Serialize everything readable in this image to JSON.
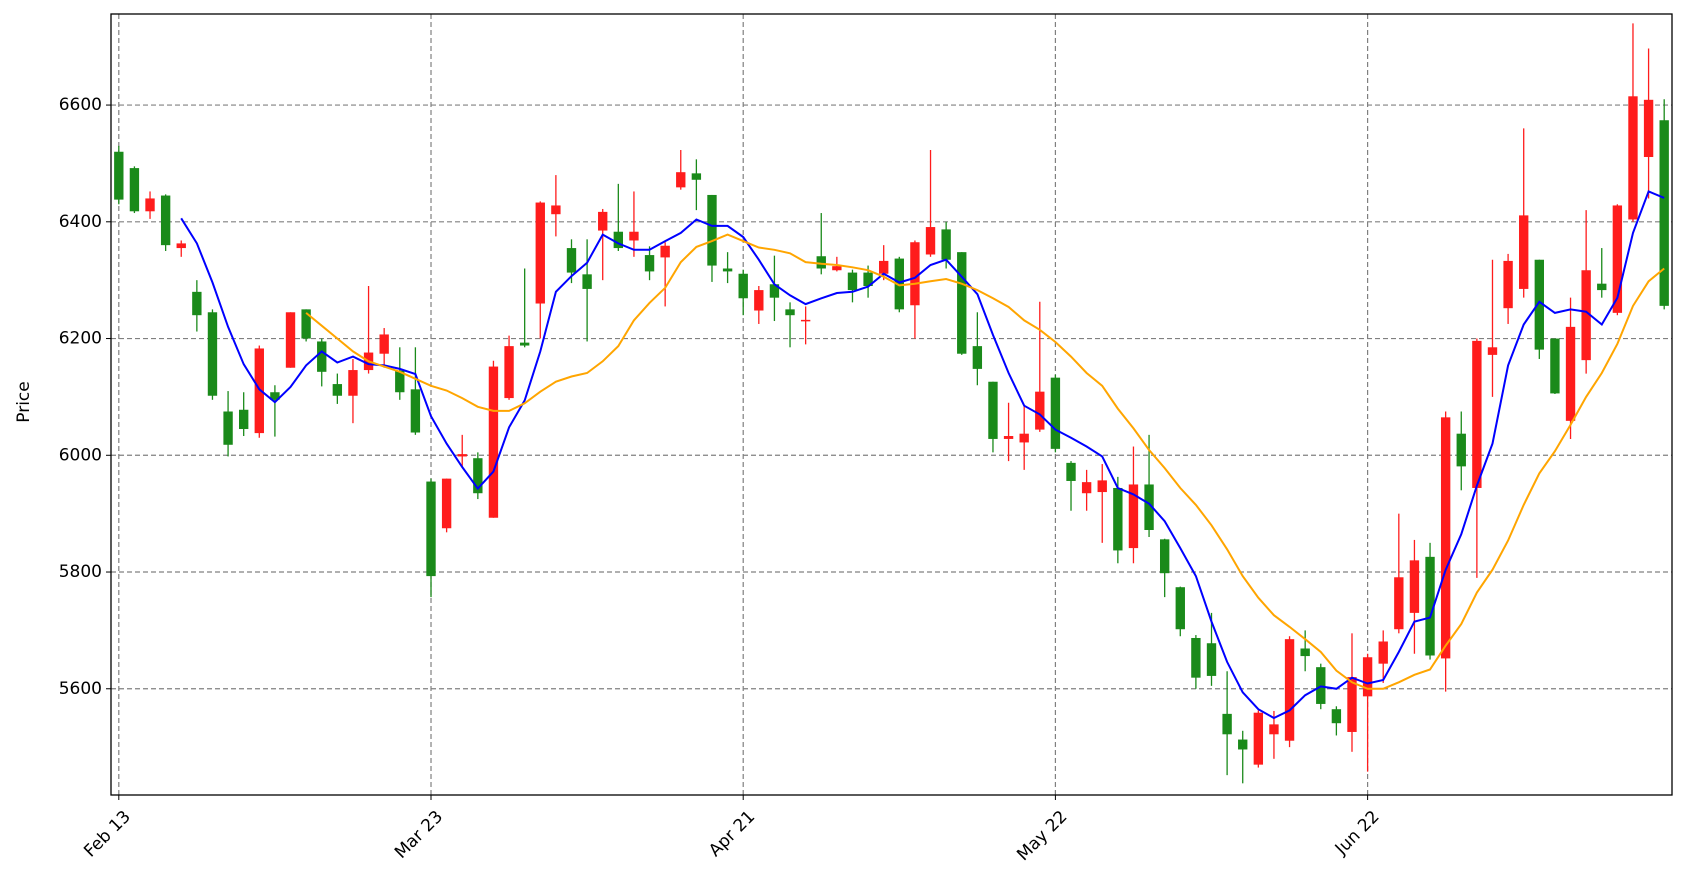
{
  "chart_data": {
    "type": "candlestick",
    "ylabel": "Price",
    "categories": [
      "Feb 13",
      null,
      null,
      null,
      null,
      null,
      null,
      null,
      null,
      null,
      null,
      null,
      null,
      null,
      null,
      null,
      null,
      null,
      null,
      null,
      "Mar 23",
      null,
      null,
      null,
      null,
      null,
      null,
      null,
      null,
      null,
      null,
      null,
      null,
      null,
      null,
      null,
      null,
      null,
      null,
      null,
      "Apr 21",
      null,
      null,
      null,
      null,
      null,
      null,
      null,
      null,
      null,
      null,
      null,
      null,
      null,
      null,
      null,
      null,
      null,
      null,
      null,
      "May 22",
      null,
      null,
      null,
      null,
      null,
      null,
      null,
      null,
      null,
      null,
      null,
      null,
      null,
      null,
      null,
      null,
      null,
      null,
      null,
      "Jun 22",
      null,
      null,
      null,
      null,
      null,
      null,
      null,
      null,
      null,
      null,
      null,
      null,
      null,
      null,
      null,
      null,
      null,
      null,
      null
    ],
    "open": [
      6520,
      6492,
      6418,
      6445,
      6355,
      6280,
      6245,
      6075,
      6078,
      6038,
      6108,
      6150,
      6250,
      6195,
      6122,
      6102,
      6146,
      6174,
      6145,
      6113,
      5955,
      5875,
      5998,
      5995,
      5893,
      6098,
      6193,
      6260,
      6413,
      6355,
      6310,
      6385,
      6383,
      6368,
      6343,
      6339,
      6459,
      6483,
      6446,
      6320,
      6311,
      6248,
      6293,
      6250,
      6230,
      6341,
      6317,
      6313,
      6313,
      6311,
      6337,
      6257,
      6344,
      6387,
      6348,
      6187,
      6126,
      6028,
      6022,
      6044,
      6133,
      5987,
      5935,
      5937,
      5944,
      5841,
      5950,
      5856,
      5774,
      5687,
      5678,
      5557,
      5513,
      5470,
      5522,
      5511,
      5669,
      5637,
      5565,
      5526,
      5587,
      5643,
      5702,
      5730,
      5826,
      5652,
      6037,
      5944,
      6172,
      6252,
      6285,
      6335,
      6200,
      6059,
      6163,
      6294,
      6244,
      6404,
      6511,
      6574
    ],
    "high": [
      6530,
      6495,
      6452,
      6447,
      6368,
      6300,
      6250,
      6110,
      6108,
      6188,
      6120,
      6245,
      6250,
      6200,
      6140,
      6165,
      6290,
      6218,
      6185,
      6185,
      5960,
      5960,
      6035,
      6005,
      6162,
      6205,
      6320,
      6435,
      6480,
      6370,
      6370,
      6422,
      6465,
      6452,
      6358,
      6365,
      6523,
      6507,
      6446,
      6348,
      6318,
      6290,
      6342,
      6262,
      6255,
      6415,
      6340,
      6318,
      6325,
      6360,
      6340,
      6368,
      6523,
      6400,
      6348,
      6245,
      6126,
      6090,
      6085,
      6263,
      6138,
      5990,
      5975,
      5985,
      5963,
      6015,
      6035,
      5857,
      5775,
      5692,
      5730,
      5630,
      5528,
      5563,
      5562,
      5690,
      5700,
      5643,
      5570,
      5695,
      5660,
      5700,
      5900,
      5855,
      5850,
      6075,
      6075,
      6200,
      6335,
      6345,
      6560,
      6335,
      6200,
      6270,
      6420,
      6355,
      6430,
      6740,
      6697,
      6610
    ],
    "low": [
      6430,
      6415,
      6405,
      6350,
      6340,
      6212,
      6095,
      5998,
      6033,
      6030,
      6032,
      6150,
      6195,
      6118,
      6088,
      6055,
      6140,
      6150,
      6095,
      6035,
      5757,
      5868,
      5980,
      5925,
      5893,
      6095,
      6185,
      6200,
      6375,
      6295,
      6195,
      6300,
      6350,
      6340,
      6300,
      6255,
      6455,
      6420,
      6297,
      6295,
      6240,
      6225,
      6230,
      6185,
      6190,
      6310,
      6315,
      6262,
      6270,
      6300,
      6245,
      6200,
      6340,
      6320,
      6172,
      6120,
      6005,
      5990,
      5975,
      6040,
      6005,
      5905,
      5905,
      5850,
      5815,
      5815,
      5860,
      5757,
      5690,
      5600,
      5605,
      5452,
      5438,
      5465,
      5480,
      5500,
      5630,
      5565,
      5520,
      5492,
      5458,
      5610,
      5695,
      5660,
      5650,
      5595,
      5940,
      5790,
      6100,
      6225,
      6270,
      6165,
      6105,
      6028,
      6140,
      6270,
      6240,
      6400,
      6440,
      6250
    ],
    "close": [
      6438,
      6418,
      6440,
      6360,
      6363,
      6240,
      6102,
      6018,
      6045,
      6183,
      6095,
      6245,
      6200,
      6143,
      6102,
      6146,
      6176,
      6207,
      6108,
      6039,
      5793,
      5960,
      6002,
      5935,
      6152,
      6187,
      6188,
      6433,
      6428,
      6313,
      6285,
      6417,
      6355,
      6383,
      6315,
      6359,
      6485,
      6472,
      6325,
      6315,
      6269,
      6283,
      6270,
      6240,
      6232,
      6320,
      6324,
      6283,
      6290,
      6333,
      6250,
      6365,
      6391,
      6335,
      6174,
      6148,
      6028,
      6033,
      6037,
      6109,
      6011,
      5956,
      5954,
      5957,
      5837,
      5950,
      5872,
      5798,
      5702,
      5619,
      5622,
      5522,
      5496,
      5559,
      5539,
      5685,
      5656,
      5574,
      5541,
      5620,
      5654,
      5681,
      5791,
      5820,
      5657,
      6065,
      5981,
      6196,
      6185,
      6333,
      6411,
      6181,
      6106,
      6220,
      6317,
      6283,
      6428,
      6615,
      6609,
      6256
    ],
    "up_color": "#ff1c1c",
    "down_color": "#1a8a1a",
    "lines": [
      {
        "color": "#0000ff",
        "values": [
          null,
          null,
          null,
          null,
          6406,
          6363,
          6296,
          6220,
          6156,
          6113,
          6091,
          6117,
          6154,
          6178,
          6159,
          6169,
          6156,
          6154,
          6148,
          6139,
          6067,
          6020,
          5980,
          5943,
          5972,
          6048,
          6094,
          6178,
          6280,
          6307,
          6330,
          6378,
          6363,
          6352,
          6352,
          6367,
          6381,
          6404,
          6393,
          6393,
          6374,
          6335,
          6293,
          6274,
          6259,
          6269,
          6278,
          6280,
          6289,
          6311,
          6296,
          6304,
          6326,
          6335,
          6306,
          6276,
          6206,
          6141,
          6085,
          6070,
          6044,
          6030,
          6015,
          5998,
          5944,
          5933,
          5917,
          5887,
          5841,
          5793,
          5715,
          5646,
          5594,
          5565,
          5550,
          5563,
          5589,
          5604,
          5600,
          5619,
          5609,
          5615,
          5663,
          5715,
          5722,
          5804,
          5865,
          5948,
          6020,
          6154,
          6224,
          6263,
          6244,
          6250,
          6246,
          6224,
          6270,
          6381,
          6452,
          6441
        ]
      },
      {
        "color": "#ffa500",
        "values": [
          null,
          null,
          null,
          null,
          null,
          null,
          null,
          null,
          null,
          null,
          null,
          null,
          6244,
          6222,
          6200,
          6178,
          6161,
          6152,
          6143,
          6131,
          6119,
          6111,
          6098,
          6083,
          6076,
          6076,
          6089,
          6109,
          6126,
          6135,
          6141,
          6161,
          6187,
          6231,
          6261,
          6287,
          6331,
          6357,
          6367,
          6378,
          6367,
          6356,
          6352,
          6346,
          6331,
          6328,
          6326,
          6322,
          6317,
          6306,
          6291,
          6294,
          6298,
          6302,
          6294,
          6283,
          6269,
          6254,
          6231,
          6215,
          6194,
          6169,
          6141,
          6119,
          6080,
          6046,
          6009,
          5978,
          5944,
          5915,
          5880,
          5839,
          5793,
          5756,
          5726,
          5706,
          5685,
          5663,
          5631,
          5611,
          5600,
          5600,
          5611,
          5624,
          5633,
          5674,
          5711,
          5765,
          5804,
          5854,
          5915,
          5969,
          6007,
          6052,
          6100,
          6141,
          6191,
          6256,
          6298,
          6320
        ]
      }
    ],
    "xlim": [
      -0.5,
      99.5
    ],
    "ylim": [
      5418,
      6756
    ],
    "yticks": [
      5600,
      5800,
      6000,
      6200,
      6400,
      6600
    ],
    "grid": true
  }
}
